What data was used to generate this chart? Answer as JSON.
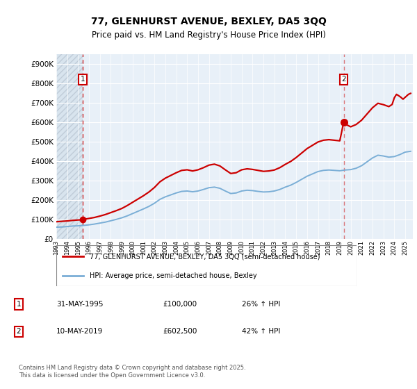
{
  "title": "77, GLENHURST AVENUE, BEXLEY, DA5 3QQ",
  "subtitle": "Price paid vs. HM Land Registry's House Price Index (HPI)",
  "property_label": "77, GLENHURST AVENUE, BEXLEY, DA5 3QQ (semi-detached house)",
  "hpi_label": "HPI: Average price, semi-detached house, Bexley",
  "annotation1_date": "31-MAY-1995",
  "annotation1_price": "£100,000",
  "annotation1_hpi": "26% ↑ HPI",
  "annotation2_date": "10-MAY-2019",
  "annotation2_price": "£602,500",
  "annotation2_hpi": "42% ↑ HPI",
  "footer": "Contains HM Land Registry data © Crown copyright and database right 2025.\nThis data is licensed under the Open Government Licence v3.0.",
  "property_color": "#cc0000",
  "hpi_color": "#7aaed6",
  "bg_color": "#ffffff",
  "plot_bg_color": "#e8f0f8",
  "grid_color": "#ffffff",
  "hatch_bg_color": "#d8e4ee",
  "hatch_edge_color": "#c0ccd8",
  "sale1_year": 1995.42,
  "sale1_price": 100000,
  "sale2_year": 2019.36,
  "sale2_price": 602500,
  "xmin": 1993.0,
  "xmax": 2025.7,
  "ylim_min": 0,
  "ylim_max": 950000,
  "yticks": [
    0,
    100000,
    200000,
    300000,
    400000,
    500000,
    600000,
    700000,
    800000,
    900000
  ],
  "ytick_labels": [
    "£0",
    "£100K",
    "£200K",
    "£300K",
    "£400K",
    "£500K",
    "£600K",
    "£700K",
    "£800K",
    "£900K"
  ],
  "xticks": [
    1993,
    1994,
    1995,
    1996,
    1997,
    1998,
    1999,
    2000,
    2001,
    2002,
    2003,
    2004,
    2005,
    2006,
    2007,
    2008,
    2009,
    2010,
    2011,
    2012,
    2013,
    2014,
    2015,
    2016,
    2017,
    2018,
    2019,
    2020,
    2021,
    2022,
    2023,
    2024,
    2025
  ]
}
